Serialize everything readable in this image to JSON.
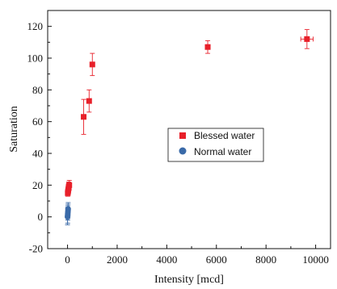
{
  "chart_data": {
    "type": "scatter",
    "title": "",
    "xlabel": "Intensity [mcd]",
    "ylabel": "Saturation",
    "xlim": [
      -800,
      10600
    ],
    "ylim": [
      -20,
      130
    ],
    "x_ticks": [
      0,
      2000,
      4000,
      6000,
      8000,
      10000
    ],
    "y_ticks": [
      -20,
      0,
      20,
      40,
      60,
      80,
      100,
      120
    ],
    "grid": false,
    "legend_position": "center-right",
    "series": [
      {
        "name": "Blessed water",
        "color": "#e8202a",
        "marker": "square",
        "points": [
          {
            "x": 10,
            "y": 15,
            "yerr": 2,
            "xerr": 0
          },
          {
            "x": 20,
            "y": 16,
            "yerr": 2,
            "xerr": 0
          },
          {
            "x": 30,
            "y": 17,
            "yerr": 2,
            "xerr": 0
          },
          {
            "x": 40,
            "y": 18,
            "yerr": 3,
            "xerr": 0
          },
          {
            "x": 50,
            "y": 19,
            "yerr": 3,
            "xerr": 0
          },
          {
            "x": 70,
            "y": 20,
            "yerr": 3,
            "xerr": 0
          },
          {
            "x": 650,
            "y": 63,
            "yerr": 11,
            "xerr": 30
          },
          {
            "x": 870,
            "y": 73,
            "yerr": 7,
            "xerr": 30
          },
          {
            "x": 1000,
            "y": 96,
            "yerr": 7,
            "xerr": 30
          },
          {
            "x": 5650,
            "y": 107,
            "yerr": 4,
            "xerr": 100
          },
          {
            "x": 9650,
            "y": 112,
            "yerr": 6,
            "xerr": 250
          }
        ]
      },
      {
        "name": "Normal water",
        "color": "#3a6aa8",
        "marker": "circle",
        "points": [
          {
            "x": 0,
            "y": 0,
            "yerr": 5,
            "xerr": 0
          },
          {
            "x": 5,
            "y": 1,
            "yerr": 5,
            "xerr": 0
          },
          {
            "x": 10,
            "y": 2,
            "yerr": 4,
            "xerr": 0
          },
          {
            "x": 15,
            "y": 3,
            "yerr": 4,
            "xerr": 0
          },
          {
            "x": 20,
            "y": 4,
            "yerr": 4,
            "xerr": 0
          },
          {
            "x": 25,
            "y": 5,
            "yerr": 4,
            "xerr": 0
          }
        ]
      }
    ]
  }
}
